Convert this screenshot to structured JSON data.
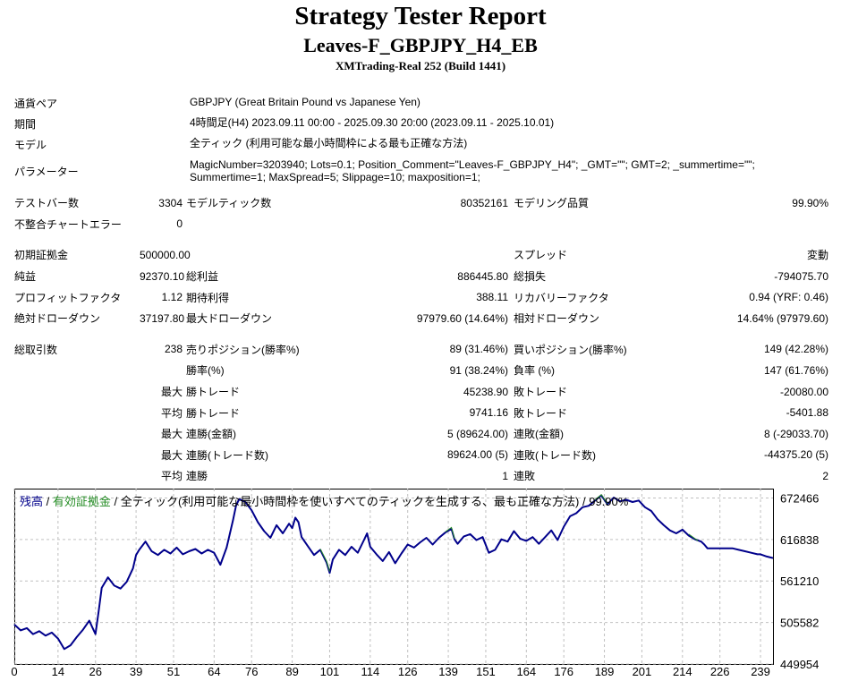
{
  "header": {
    "title": "Strategy Tester Report",
    "subtitle": "Leaves-F_GBPJPY_H4_EB",
    "server": "XMTrading-Real 252 (Build 1441)"
  },
  "info": [
    {
      "label": "通貨ペア",
      "value": "GBPJPY (Great Britain Pound vs Japanese Yen)"
    },
    {
      "label": "期間",
      "value": "4時間足(H4) 2023.09.11 00:00 - 2025.09.30 20:00 (2023.09.11 - 2025.10.01)"
    },
    {
      "label": "モデル",
      "value": "全ティック (利用可能な最小時間枠による最も正確な方法)"
    },
    {
      "label": "パラメーター",
      "value": "MagicNumber=3203940; Lots=0.1; Position_Comment=\"Leaves-F_GBPJPY_H4\"; _GMT=\"\"; GMT=2; _summertime=\"\"; Summertime=1; MaxSpread=5; Slippage=10; maxposition=1;"
    }
  ],
  "stats": {
    "bars_label": "テストバー数",
    "bars_value": "3304",
    "ticks_label": "モデルティック数",
    "ticks_value": "80352161",
    "quality_label": "モデリング品質",
    "quality_value": "99.90%",
    "mismatch_label": "不整合チャートエラー",
    "mismatch_value": "0",
    "deposit_label": "初期証拠金",
    "deposit_value": "500000.00",
    "spread_label": "スプレッド",
    "spread_value": "変動",
    "net_label": "純益",
    "net_value": "92370.10",
    "gross_profit_label": "総利益",
    "gross_profit_value": "886445.80",
    "gross_loss_label": "総損失",
    "gross_loss_value": "-794075.70",
    "pf_label": "プロフィットファクタ",
    "pf_value": "1.12",
    "expected_label": "期待利得",
    "expected_value": "388.11",
    "recovery_label": "リカバリーファクタ",
    "recovery_value": "0.94 (YRF: 0.46)",
    "abs_dd_label": "絶対ドローダウン",
    "abs_dd_value": "37197.80",
    "max_dd_label": "最大ドローダウン",
    "max_dd_value": "97979.60 (14.64%)",
    "rel_dd_label": "相対ドローダウン",
    "rel_dd_value": "14.64% (97979.60)",
    "trades_label": "総取引数",
    "trades_value": "238",
    "short_label": "売りポジション(勝率%)",
    "short_value": "89 (31.46%)",
    "long_label": "買いポジション(勝率%)",
    "long_value": "149 (42.28%)",
    "winrate_label": "勝率(%)",
    "winrate_value": "91 (38.24%)",
    "lossrate_label": "負率 (%)",
    "lossrate_value": "147 (61.76%)",
    "max_word": "最大",
    "avg_word": "平均",
    "win_trade_label": "勝トレード",
    "loss_trade_label": "敗トレード",
    "largest_win_value": "45238.90",
    "largest_loss_value": "-20080.00",
    "avg_win_value": "9741.16",
    "avg_loss_value": "-5401.88",
    "consec_win_amt_label": "連勝(金額)",
    "consec_win_amt_value": "5 (89624.00)",
    "consec_loss_amt_label": "連敗(金額)",
    "consec_loss_amt_value": "8 (-29033.70)",
    "consec_win_cnt_label": "連勝(トレード数)",
    "consec_win_cnt_value": "89624.00 (5)",
    "consec_loss_cnt_label": "連敗(トレード数)",
    "consec_loss_cnt_value": "-44375.20 (5)",
    "avg_consec_win_label": "連勝",
    "avg_consec_win_value": "1",
    "avg_consec_loss_label": "連敗",
    "avg_consec_loss_value": "2"
  },
  "chart_data": {
    "type": "line",
    "legend": {
      "balance": "残高",
      "equity": "有効証拠金",
      "rest": "全ティック(利用可能な最小時間枠を使いすべてのティックを生成する、最も正確な方法) / 99.90%"
    },
    "xlim": [
      0,
      243
    ],
    "ylim": [
      449954,
      685000
    ],
    "x_ticks": [
      0,
      14,
      26,
      39,
      51,
      64,
      76,
      89,
      101,
      114,
      126,
      139,
      151,
      164,
      176,
      189,
      201,
      214,
      226,
      239
    ],
    "y_ticks": [
      672466,
      616838,
      561210,
      505582,
      449954
    ],
    "colors": {
      "balance": "#00008b",
      "equity": "#228b22"
    },
    "series": [
      {
        "name": "残高",
        "points": [
          [
            0,
            503000
          ],
          [
            2,
            495000
          ],
          [
            4,
            498000
          ],
          [
            6,
            490000
          ],
          [
            8,
            494000
          ],
          [
            10,
            488000
          ],
          [
            12,
            492000
          ],
          [
            14,
            484000
          ],
          [
            16,
            470000
          ],
          [
            18,
            475000
          ],
          [
            20,
            486000
          ],
          [
            22,
            496000
          ],
          [
            24,
            508000
          ],
          [
            25,
            499000
          ],
          [
            26,
            490000
          ],
          [
            27,
            520000
          ],
          [
            28,
            552000
          ],
          [
            30,
            566000
          ],
          [
            32,
            555000
          ],
          [
            34,
            551000
          ],
          [
            36,
            560000
          ],
          [
            38,
            578000
          ],
          [
            39,
            596000
          ],
          [
            40,
            603000
          ],
          [
            42,
            614000
          ],
          [
            44,
            601000
          ],
          [
            46,
            596000
          ],
          [
            48,
            603000
          ],
          [
            50,
            598000
          ],
          [
            52,
            606000
          ],
          [
            54,
            597000
          ],
          [
            56,
            601000
          ],
          [
            58,
            604000
          ],
          [
            60,
            598000
          ],
          [
            62,
            603000
          ],
          [
            64,
            599000
          ],
          [
            66,
            583000
          ],
          [
            68,
            606000
          ],
          [
            70,
            642000
          ],
          [
            71,
            662000
          ],
          [
            72,
            671000
          ],
          [
            74,
            667000
          ],
          [
            76,
            656000
          ],
          [
            78,
            640000
          ],
          [
            80,
            628000
          ],
          [
            82,
            619000
          ],
          [
            84,
            636000
          ],
          [
            86,
            625000
          ],
          [
            88,
            638000
          ],
          [
            89,
            632000
          ],
          [
            90,
            646000
          ],
          [
            91,
            640000
          ],
          [
            92,
            620000
          ],
          [
            94,
            608000
          ],
          [
            96,
            596000
          ],
          [
            98,
            603000
          ],
          [
            100,
            586000
          ],
          [
            101,
            572000
          ],
          [
            102,
            590000
          ],
          [
            104,
            603000
          ],
          [
            106,
            596000
          ],
          [
            108,
            607000
          ],
          [
            110,
            599000
          ],
          [
            112,
            616000
          ],
          [
            113,
            625000
          ],
          [
            114,
            607000
          ],
          [
            116,
            597000
          ],
          [
            118,
            588000
          ],
          [
            120,
            600000
          ],
          [
            122,
            585000
          ],
          [
            124,
            598000
          ],
          [
            126,
            610000
          ],
          [
            128,
            606000
          ],
          [
            130,
            613000
          ],
          [
            132,
            619000
          ],
          [
            134,
            610000
          ],
          [
            136,
            619000
          ],
          [
            138,
            626000
          ],
          [
            140,
            631000
          ],
          [
            141,
            617000
          ],
          [
            142,
            611000
          ],
          [
            144,
            621000
          ],
          [
            146,
            624000
          ],
          [
            148,
            616000
          ],
          [
            150,
            620000
          ],
          [
            152,
            599000
          ],
          [
            154,
            603000
          ],
          [
            156,
            617000
          ],
          [
            158,
            614000
          ],
          [
            160,
            628000
          ],
          [
            162,
            618000
          ],
          [
            164,
            615000
          ],
          [
            166,
            620000
          ],
          [
            168,
            611000
          ],
          [
            170,
            620000
          ],
          [
            172,
            629000
          ],
          [
            174,
            616000
          ],
          [
            176,
            634000
          ],
          [
            178,
            648000
          ],
          [
            180,
            652000
          ],
          [
            182,
            660000
          ],
          [
            184,
            662000
          ],
          [
            186,
            669000
          ],
          [
            188,
            676000
          ],
          [
            190,
            664000
          ],
          [
            192,
            673000
          ],
          [
            194,
            668000
          ],
          [
            196,
            670000
          ],
          [
            198,
            667000
          ],
          [
            200,
            669000
          ],
          [
            202,
            660000
          ],
          [
            204,
            655000
          ],
          [
            206,
            644000
          ],
          [
            208,
            636000
          ],
          [
            210,
            629000
          ],
          [
            212,
            625000
          ],
          [
            214,
            630000
          ],
          [
            216,
            622000
          ],
          [
            218,
            617000
          ],
          [
            220,
            614000
          ],
          [
            221,
            610000
          ],
          [
            222,
            605000
          ],
          [
            224,
            605000
          ],
          [
            226,
            605000
          ],
          [
            228,
            605000
          ],
          [
            230,
            605000
          ],
          [
            232,
            603000
          ],
          [
            234,
            601000
          ],
          [
            236,
            599000
          ],
          [
            238,
            597000
          ],
          [
            239,
            597000
          ],
          [
            241,
            594000
          ],
          [
            243,
            592000
          ]
        ]
      },
      {
        "name": "有効証拠金",
        "points": [
          [
            98,
            604000
          ],
          [
            100,
            588000
          ],
          [
            101,
            574000
          ],
          [
            138,
            627000
          ],
          [
            140,
            633000
          ],
          [
            141,
            618000
          ],
          [
            186,
            670000
          ],
          [
            188,
            677000
          ],
          [
            190,
            665000
          ],
          [
            216,
            624000
          ],
          [
            218,
            618000
          ],
          [
            219,
            615000
          ]
        ]
      }
    ]
  }
}
